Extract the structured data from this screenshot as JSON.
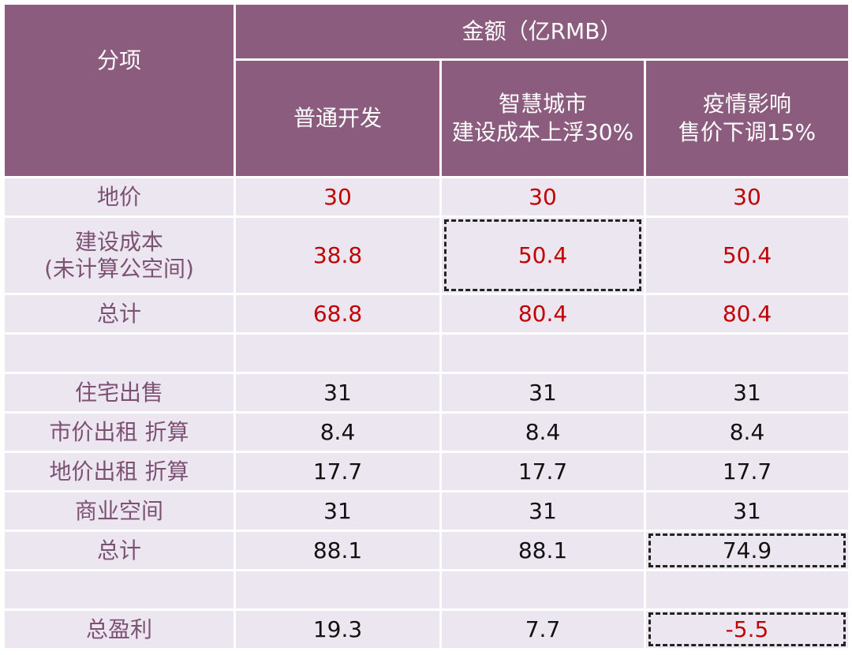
{
  "header": {
    "item_label": "分项",
    "amount_label": "金额（亿RMB）",
    "columns": [
      {
        "line1": "普通开发",
        "line2": ""
      },
      {
        "line1": "智慧城市",
        "line2": "建设成本上浮30%"
      },
      {
        "line1": "疫情影响",
        "line2": "售价下调15%"
      }
    ]
  },
  "rows": [
    {
      "label": "地价",
      "label2": "",
      "values": [
        "30",
        "30",
        "30"
      ],
      "highlight": [
        true,
        true,
        true
      ]
    },
    {
      "label": "建设成本",
      "label2": "(未计算公空间)",
      "values": [
        "38.8",
        "50.4",
        "50.4"
      ],
      "highlight": [
        true,
        true,
        true
      ]
    },
    {
      "label": "总计",
      "label2": "",
      "values": [
        "68.8",
        "80.4",
        "80.4"
      ],
      "highlight": [
        true,
        true,
        true
      ]
    },
    {
      "label": "",
      "label2": "",
      "values": [
        "",
        "",
        ""
      ],
      "highlight": [
        false,
        false,
        false
      ]
    },
    {
      "label": "住宅出售",
      "label2": "",
      "values": [
        "31",
        "31",
        "31"
      ],
      "highlight": [
        false,
        false,
        false
      ]
    },
    {
      "label": "市价出租 折算",
      "label2": "",
      "values": [
        "8.4",
        "8.4",
        "8.4"
      ],
      "highlight": [
        false,
        false,
        false
      ]
    },
    {
      "label": "地价出租 折算",
      "label2": "",
      "values": [
        "17.7",
        "17.7",
        "17.7"
      ],
      "highlight": [
        false,
        false,
        false
      ]
    },
    {
      "label": "商业空间",
      "label2": "",
      "values": [
        "31",
        "31",
        "31"
      ],
      "highlight": [
        false,
        false,
        false
      ]
    },
    {
      "label": "总计",
      "label2": "",
      "values": [
        "88.1",
        "88.1",
        "74.9"
      ],
      "highlight": [
        false,
        false,
        false
      ]
    },
    {
      "label": "",
      "label2": "",
      "values": [
        "",
        "",
        ""
      ],
      "highlight": [
        false,
        false,
        false
      ]
    },
    {
      "label": "总盈利",
      "label2": "",
      "values": [
        "19.3",
        "7.7",
        "-5.5"
      ],
      "highlight": [
        false,
        false,
        true
      ]
    }
  ],
  "colors": {
    "header_bg": "#8b5c7e",
    "body_bg": "#ece6f0",
    "label_text": "#7d5173",
    "highlight_text": "#c00000"
  }
}
